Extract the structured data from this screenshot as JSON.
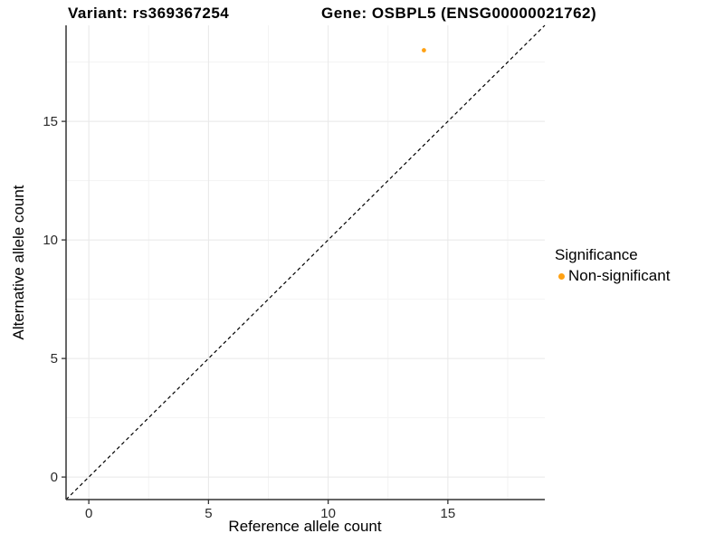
{
  "figure": {
    "title_left": "Variant: rs369367254",
    "title_right": "Gene: OSBPL5 (ENSG00000021762)"
  },
  "chart_data": {
    "type": "scatter",
    "title_left": "Variant: rs369367254",
    "title_right": "Gene: OSBPL5 (ENSG00000021762)",
    "xlabel": "Reference allele count",
    "ylabel": "Alternative allele count",
    "xlim": [
      -0.95,
      19.05
    ],
    "ylim": [
      -0.95,
      19.05
    ],
    "x_ticks": [
      0,
      5,
      10,
      15
    ],
    "y_ticks": [
      0,
      5,
      10,
      15
    ],
    "x_minor_ticks": [
      2.5,
      7.5,
      12.5,
      17.5
    ],
    "y_minor_ticks": [
      2.5,
      7.5,
      12.5,
      17.5
    ],
    "grid": "major and minor, light gray on white",
    "identity_line": {
      "style": "dashed",
      "equation": "y = x",
      "from": [
        -0.95,
        -0.95
      ],
      "to": [
        19.05,
        19.05
      ]
    },
    "series": [
      {
        "name": "Non-significant",
        "color": "#FFA113",
        "points": [
          {
            "x": 14,
            "y": 18
          }
        ]
      }
    ],
    "legend": {
      "position": "right",
      "title": "Significance",
      "items": [
        {
          "label": "Non-significant",
          "color": "#FFA113"
        }
      ]
    },
    "colors": {
      "grid_major": "#E8E8E8",
      "grid_minor": "#F3F3F3",
      "axis": "#333333",
      "tick_text": "#2B2B2B",
      "identity_line": "#000000",
      "background": "#FFFFFF"
    }
  }
}
